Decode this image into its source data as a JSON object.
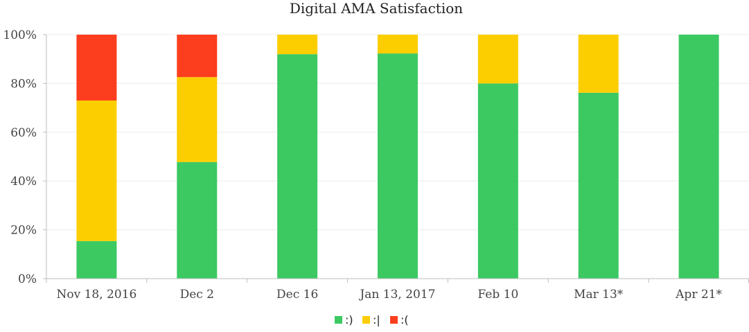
{
  "chart_data": {
    "type": "bar",
    "stacked": true,
    "title": "Digital AMA Satisfaction",
    "xlabel": "",
    "ylabel": "",
    "categories": [
      "Nov 18, 2016",
      "Dec 2",
      "Dec 16",
      "Jan 13, 2017",
      "Feb 10",
      "Mar 13*",
      "Apr 21*"
    ],
    "ylim": [
      0,
      100
    ],
    "yticks": [
      0,
      20,
      40,
      60,
      80,
      100
    ],
    "ytick_labels": [
      "0%",
      "20%",
      "40%",
      "60%",
      "80%",
      "100%"
    ],
    "grid": true,
    "legend_position": "bottom-center",
    "series": [
      {
        "name": ":)",
        "color": "#3cc962",
        "values": [
          15.4,
          47.8,
          92.0,
          92.3,
          80.0,
          76.2,
          100.0
        ]
      },
      {
        "name": ":|",
        "color": "#fcce00",
        "values": [
          57.6,
          34.8,
          8.0,
          7.7,
          20.0,
          23.8,
          0.0
        ]
      },
      {
        "name": ":(",
        "color": "#fc3e1e",
        "values": [
          27.0,
          17.4,
          0.0,
          0.0,
          0.0,
          0.0,
          0.0
        ]
      }
    ]
  }
}
